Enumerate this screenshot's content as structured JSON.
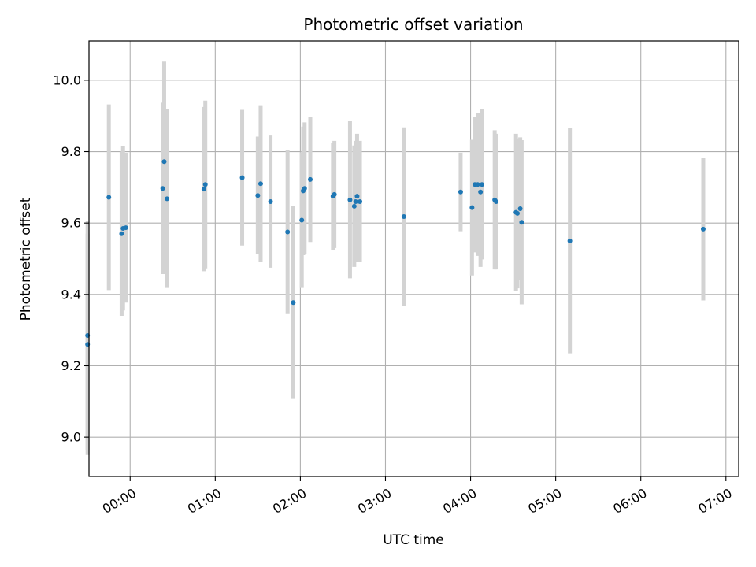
{
  "chart_data": {
    "type": "scatter",
    "title": "Photometric offset variation",
    "xlabel": "UTC time",
    "ylabel": "Photometric offset",
    "x_axis_type": "time",
    "xlim": [
      "-00:29",
      "07:09"
    ],
    "ylim": [
      8.89,
      10.11
    ],
    "x_ticks": [
      "00:00",
      "01:00",
      "02:00",
      "03:00",
      "04:00",
      "05:00",
      "06:00",
      "07:00"
    ],
    "y_ticks": [
      9.0,
      9.2,
      9.4,
      9.6,
      9.8,
      10.0
    ],
    "grid": true,
    "legend": "none",
    "colors": {
      "points": "#1f77b4",
      "errorbars": "#d3d3d3",
      "grid": "#b0b0b0"
    },
    "points": [
      {
        "x": "-00:30",
        "y": 9.285,
        "err": 0.32
      },
      {
        "x": "-00:30",
        "y": 9.26,
        "err": 0.31
      },
      {
        "x": "-00:15",
        "y": 9.672,
        "err": 0.26
      },
      {
        "x": "-00:06",
        "y": 9.57,
        "err": 0.23
      },
      {
        "x": "-00:05",
        "y": 9.585,
        "err": 0.23
      },
      {
        "x": "-00:03",
        "y": 9.587,
        "err": 0.21
      },
      {
        "x": "00:23",
        "y": 9.697,
        "err": 0.24
      },
      {
        "x": "00:24",
        "y": 9.772,
        "err": 0.28
      },
      {
        "x": "00:26",
        "y": 9.668,
        "err": 0.25
      },
      {
        "x": "00:52",
        "y": 9.695,
        "err": 0.23
      },
      {
        "x": "00:53",
        "y": 9.708,
        "err": 0.235
      },
      {
        "x": "01:19",
        "y": 9.727,
        "err": 0.19
      },
      {
        "x": "01:30",
        "y": 9.677,
        "err": 0.165
      },
      {
        "x": "01:32",
        "y": 9.71,
        "err": 0.22
      },
      {
        "x": "01:39",
        "y": 9.66,
        "err": 0.185
      },
      {
        "x": "01:51",
        "y": 9.575,
        "err": 0.23
      },
      {
        "x": "01:55",
        "y": 9.377,
        "err": 0.27
      },
      {
        "x": "02:01",
        "y": 9.608,
        "err": 0.19
      },
      {
        "x": "02:02",
        "y": 9.69,
        "err": 0.18
      },
      {
        "x": "02:03",
        "y": 9.697,
        "err": 0.185
      },
      {
        "x": "02:07",
        "y": 9.722,
        "err": 0.175
      },
      {
        "x": "02:23",
        "y": 9.675,
        "err": 0.15
      },
      {
        "x": "02:24",
        "y": 9.68,
        "err": 0.15
      },
      {
        "x": "02:35",
        "y": 9.665,
        "err": 0.22
      },
      {
        "x": "02:38",
        "y": 9.647,
        "err": 0.17
      },
      {
        "x": "02:39",
        "y": 9.66,
        "err": 0.17
      },
      {
        "x": "02:40",
        "y": 9.675,
        "err": 0.175
      },
      {
        "x": "02:42",
        "y": 9.66,
        "err": 0.17
      },
      {
        "x": "03:13",
        "y": 9.618,
        "err": 0.25
      },
      {
        "x": "03:53",
        "y": 9.687,
        "err": 0.11
      },
      {
        "x": "04:01",
        "y": 9.643,
        "err": 0.19
      },
      {
        "x": "04:03",
        "y": 9.708,
        "err": 0.19
      },
      {
        "x": "04:05",
        "y": 9.708,
        "err": 0.2
      },
      {
        "x": "04:07",
        "y": 9.687,
        "err": 0.21
      },
      {
        "x": "04:08",
        "y": 9.708,
        "err": 0.21
      },
      {
        "x": "04:17",
        "y": 9.665,
        "err": 0.195
      },
      {
        "x": "04:18",
        "y": 9.66,
        "err": 0.19
      },
      {
        "x": "04:32",
        "y": 9.63,
        "err": 0.22
      },
      {
        "x": "04:33",
        "y": 9.627,
        "err": 0.21
      },
      {
        "x": "04:35",
        "y": 9.64,
        "err": 0.2
      },
      {
        "x": "04:36",
        "y": 9.602,
        "err": 0.23
      },
      {
        "x": "05:10",
        "y": 9.55,
        "err": 0.315
      },
      {
        "x": "06:44",
        "y": 9.583,
        "err": 0.2
      }
    ]
  }
}
